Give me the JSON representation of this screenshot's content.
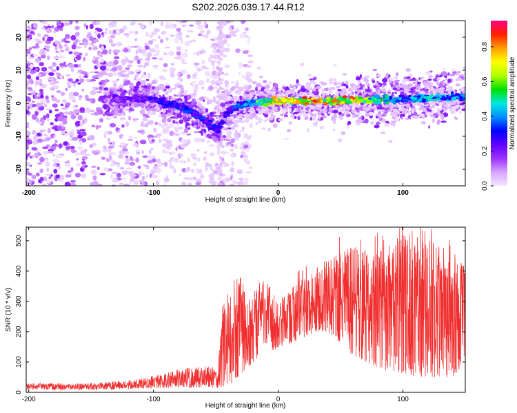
{
  "title": "S202.2026.039.17.44.R12",
  "chart_data": [
    {
      "type": "heatmap",
      "name": "spectrogram",
      "xlabel": "Height of straight line (km)",
      "ylabel": "Frequency (Hz)",
      "xlim": [
        -202,
        150
      ],
      "ylim": [
        -25,
        25
      ],
      "x_ticks": [
        "-200",
        "-100",
        "0",
        "100"
      ],
      "x_tick_values": [
        -200,
        -100,
        0,
        100
      ],
      "y_ticks": [
        "20",
        "10",
        "0",
        "-10",
        "-20"
      ],
      "y_tick_values": [
        20,
        10,
        0,
        -10,
        -20
      ],
      "colorbar": {
        "label": "Normalized spectral amplitude",
        "range": [
          0.0,
          0.95
        ],
        "ticks": [
          "0.0",
          "0.2",
          "0.4",
          "0.6",
          "0.8"
        ],
        "tick_values": [
          0.0,
          0.2,
          0.4,
          0.6,
          0.8
        ],
        "stops": [
          "#f4e6ff",
          "#d7a4ff",
          "#9b30ff",
          "#6000ff",
          "#0000ff",
          "#0090ff",
          "#00e8e0",
          "#00e000",
          "#b0ff00",
          "#ffff00",
          "#ffa000",
          "#ff2000",
          "#ff0080"
        ]
      },
      "ridge": {
        "points": [
          [
            -130,
            1
          ],
          [
            -110,
            1.5
          ],
          [
            -100,
            1
          ],
          [
            -90,
            0
          ],
          [
            -80,
            -1
          ],
          [
            -70,
            -2.5
          ],
          [
            -60,
            -5
          ],
          [
            -52,
            -7.5
          ],
          [
            -48,
            -8
          ],
          [
            -44,
            -5
          ],
          [
            -40,
            -2.5
          ],
          [
            -35,
            -1.5
          ],
          [
            -30,
            -0.5
          ],
          [
            -20,
            0.3
          ],
          [
            0,
            0.7
          ],
          [
            40,
            0.7
          ],
          [
            80,
            1
          ],
          [
            120,
            1.5
          ],
          [
            150,
            2
          ]
        ],
        "amplitudes": [
          [
            -130,
            0.25
          ],
          [
            -100,
            0.3
          ],
          [
            -80,
            0.35
          ],
          [
            -60,
            0.35
          ],
          [
            -40,
            0.3
          ],
          [
            -25,
            0.5
          ],
          [
            -10,
            0.7
          ],
          [
            0,
            0.85
          ],
          [
            30,
            0.88
          ],
          [
            60,
            0.85
          ],
          [
            80,
            0.6
          ],
          [
            100,
            0.45
          ],
          [
            130,
            0.5
          ],
          [
            150,
            0.45
          ]
        ]
      }
    },
    {
      "type": "line",
      "name": "snr",
      "xlabel": "Height of straight line (km)",
      "ylabel": "SNR (10 * v/v)",
      "xlim": [
        -202,
        150
      ],
      "ylim": [
        0,
        545
      ],
      "color": "#f03030",
      "x_ticks": [
        "-200",
        "-100",
        "0",
        "100"
      ],
      "x_tick_values": [
        -200,
        -100,
        0,
        100
      ],
      "y_ticks": [
        "500",
        "400",
        "300",
        "200",
        "100",
        "0"
      ],
      "y_tick_values": [
        500,
        400,
        300,
        200,
        100,
        0
      ],
      "envelope": {
        "x": [
          -202,
          -150,
          -120,
          -100,
          -80,
          -60,
          -48,
          -45,
          -40,
          -35,
          -30,
          -25,
          -20,
          -10,
          0,
          10,
          20,
          30,
          40,
          50,
          60,
          80,
          100,
          120,
          140,
          150
        ],
        "lower": [
          8,
          8,
          10,
          12,
          15,
          15,
          12,
          20,
          20,
          40,
          60,
          80,
          100,
          130,
          140,
          160,
          180,
          200,
          200,
          160,
          120,
          80,
          60,
          50,
          50,
          100
        ],
        "upper": [
          30,
          30,
          40,
          55,
          75,
          85,
          90,
          300,
          350,
          380,
          390,
          300,
          340,
          380,
          290,
          340,
          380,
          400,
          440,
          470,
          480,
          490,
          520,
          500,
          470,
          420
        ]
      }
    }
  ]
}
